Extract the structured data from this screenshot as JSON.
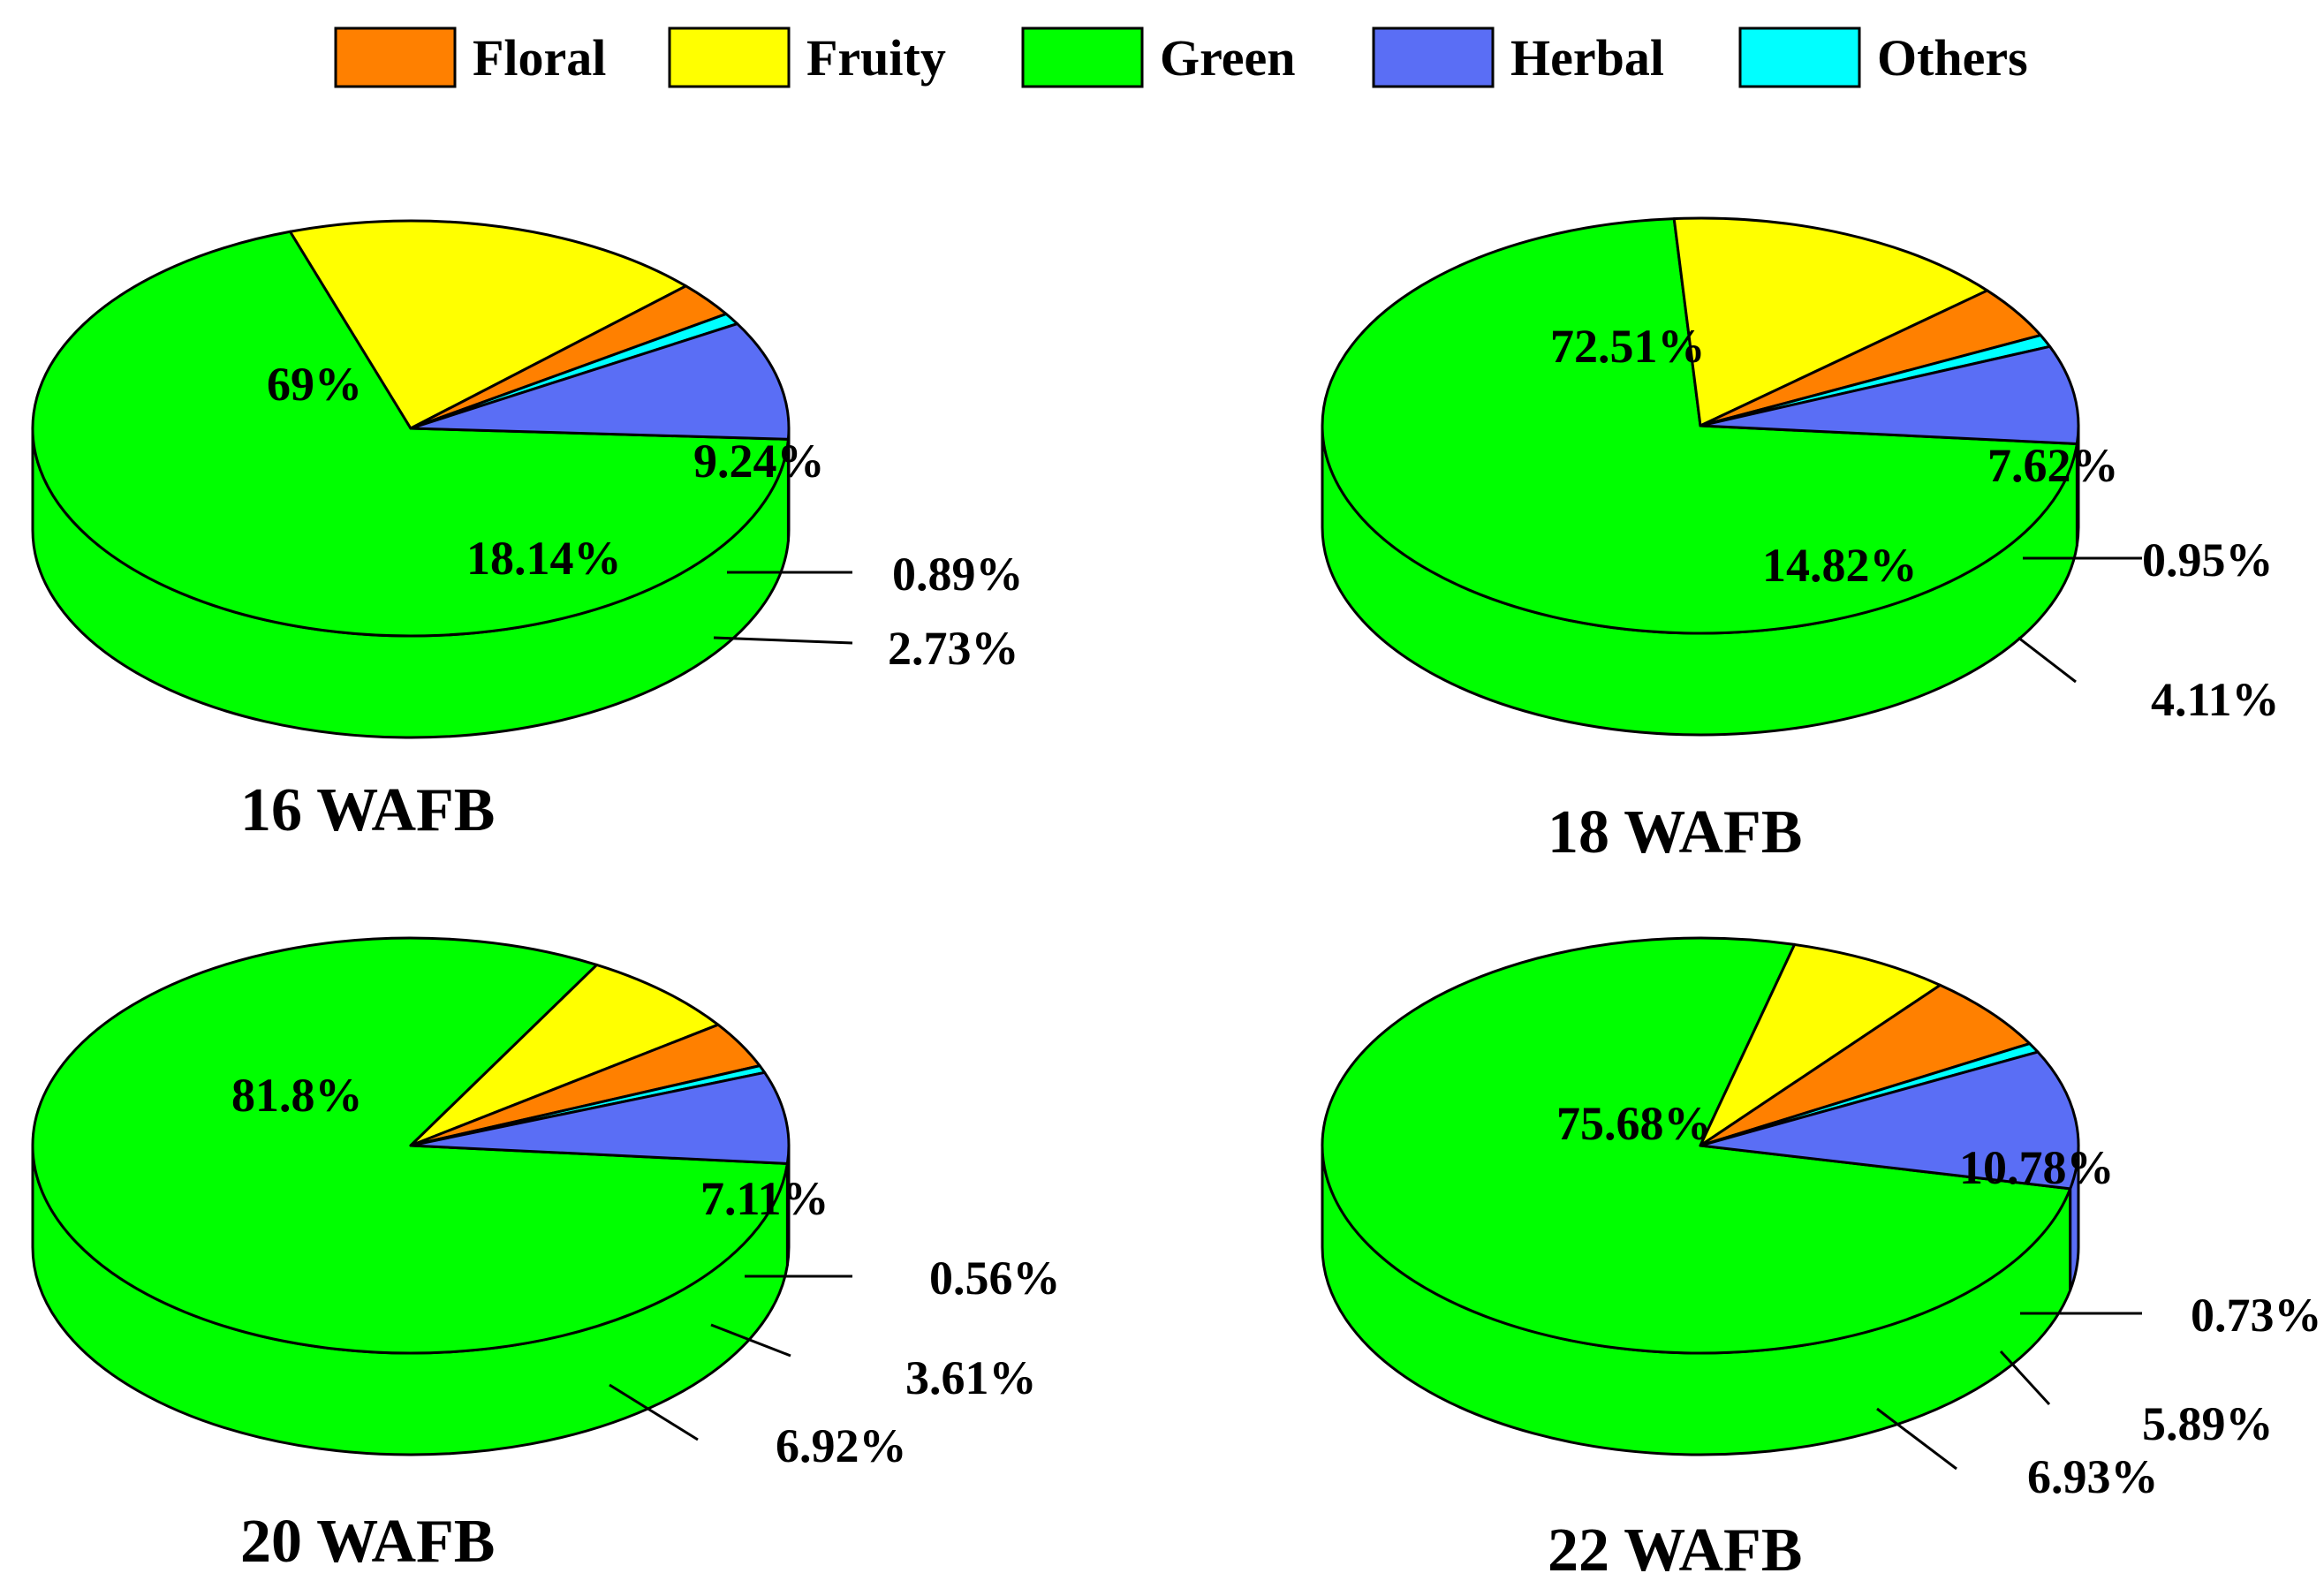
{
  "legend": [
    {
      "key": "floral",
      "label": "Floral"
    },
    {
      "key": "fruity",
      "label": "Fruity"
    },
    {
      "key": "green",
      "label": "Green"
    },
    {
      "key": "herbal",
      "label": "Herbal"
    },
    {
      "key": "others",
      "label": "Others"
    }
  ],
  "colors": {
    "floral": "#ff8000",
    "fruity": "#ffff00",
    "green": "#00ff00",
    "herbal": "#5a6ef5",
    "others": "#00ffff",
    "outline": "#000000"
  },
  "chart_data": [
    {
      "type": "pie",
      "title": "16 WAFB",
      "slices": [
        {
          "key": "green",
          "label": "Green",
          "value": 69,
          "text": "69%"
        },
        {
          "key": "fruity",
          "label": "Fruity",
          "value": 18.14,
          "text": "18.14%"
        },
        {
          "key": "floral",
          "label": "Floral",
          "value": 2.73,
          "text": "2.73%"
        },
        {
          "key": "others",
          "label": "Others",
          "value": 0.89,
          "text": "0.89%"
        },
        {
          "key": "herbal",
          "label": "Herbal",
          "value": 9.24,
          "text": "9.24%"
        }
      ]
    },
    {
      "type": "pie",
      "title": "18 WAFB",
      "slices": [
        {
          "key": "green",
          "label": "Green",
          "value": 72.51,
          "text": "72.51%"
        },
        {
          "key": "fruity",
          "label": "Fruity",
          "value": 14.82,
          "text": "14.82%"
        },
        {
          "key": "floral",
          "label": "Floral",
          "value": 4.11,
          "text": "4.11%"
        },
        {
          "key": "others",
          "label": "Others",
          "value": 0.95,
          "text": "0.95%"
        },
        {
          "key": "herbal",
          "label": "Herbal",
          "value": 7.62,
          "text": "7.62%"
        }
      ]
    },
    {
      "type": "pie",
      "title": "20 WAFB",
      "slices": [
        {
          "key": "green",
          "label": "Green",
          "value": 81.8,
          "text": "81.8%"
        },
        {
          "key": "fruity",
          "label": "Fruity",
          "value": 6.92,
          "text": "6.92%"
        },
        {
          "key": "floral",
          "label": "Floral",
          "value": 3.61,
          "text": "3.61%"
        },
        {
          "key": "others",
          "label": "Others",
          "value": 0.56,
          "text": "0.56%"
        },
        {
          "key": "herbal",
          "label": "Herbal",
          "value": 7.11,
          "text": "7.11%"
        }
      ]
    },
    {
      "type": "pie",
      "title": "22 WAFB",
      "slices": [
        {
          "key": "green",
          "label": "Green",
          "value": 75.68,
          "text": "75.68%"
        },
        {
          "key": "fruity",
          "label": "Fruity",
          "value": 6.93,
          "text": "6.93%"
        },
        {
          "key": "floral",
          "label": "Floral",
          "value": 5.89,
          "text": "5.89%"
        },
        {
          "key": "others",
          "label": "Others",
          "value": 0.73,
          "text": "0.73%"
        },
        {
          "key": "herbal",
          "label": "Herbal",
          "value": 10.78,
          "text": "10.78%"
        }
      ]
    }
  ]
}
